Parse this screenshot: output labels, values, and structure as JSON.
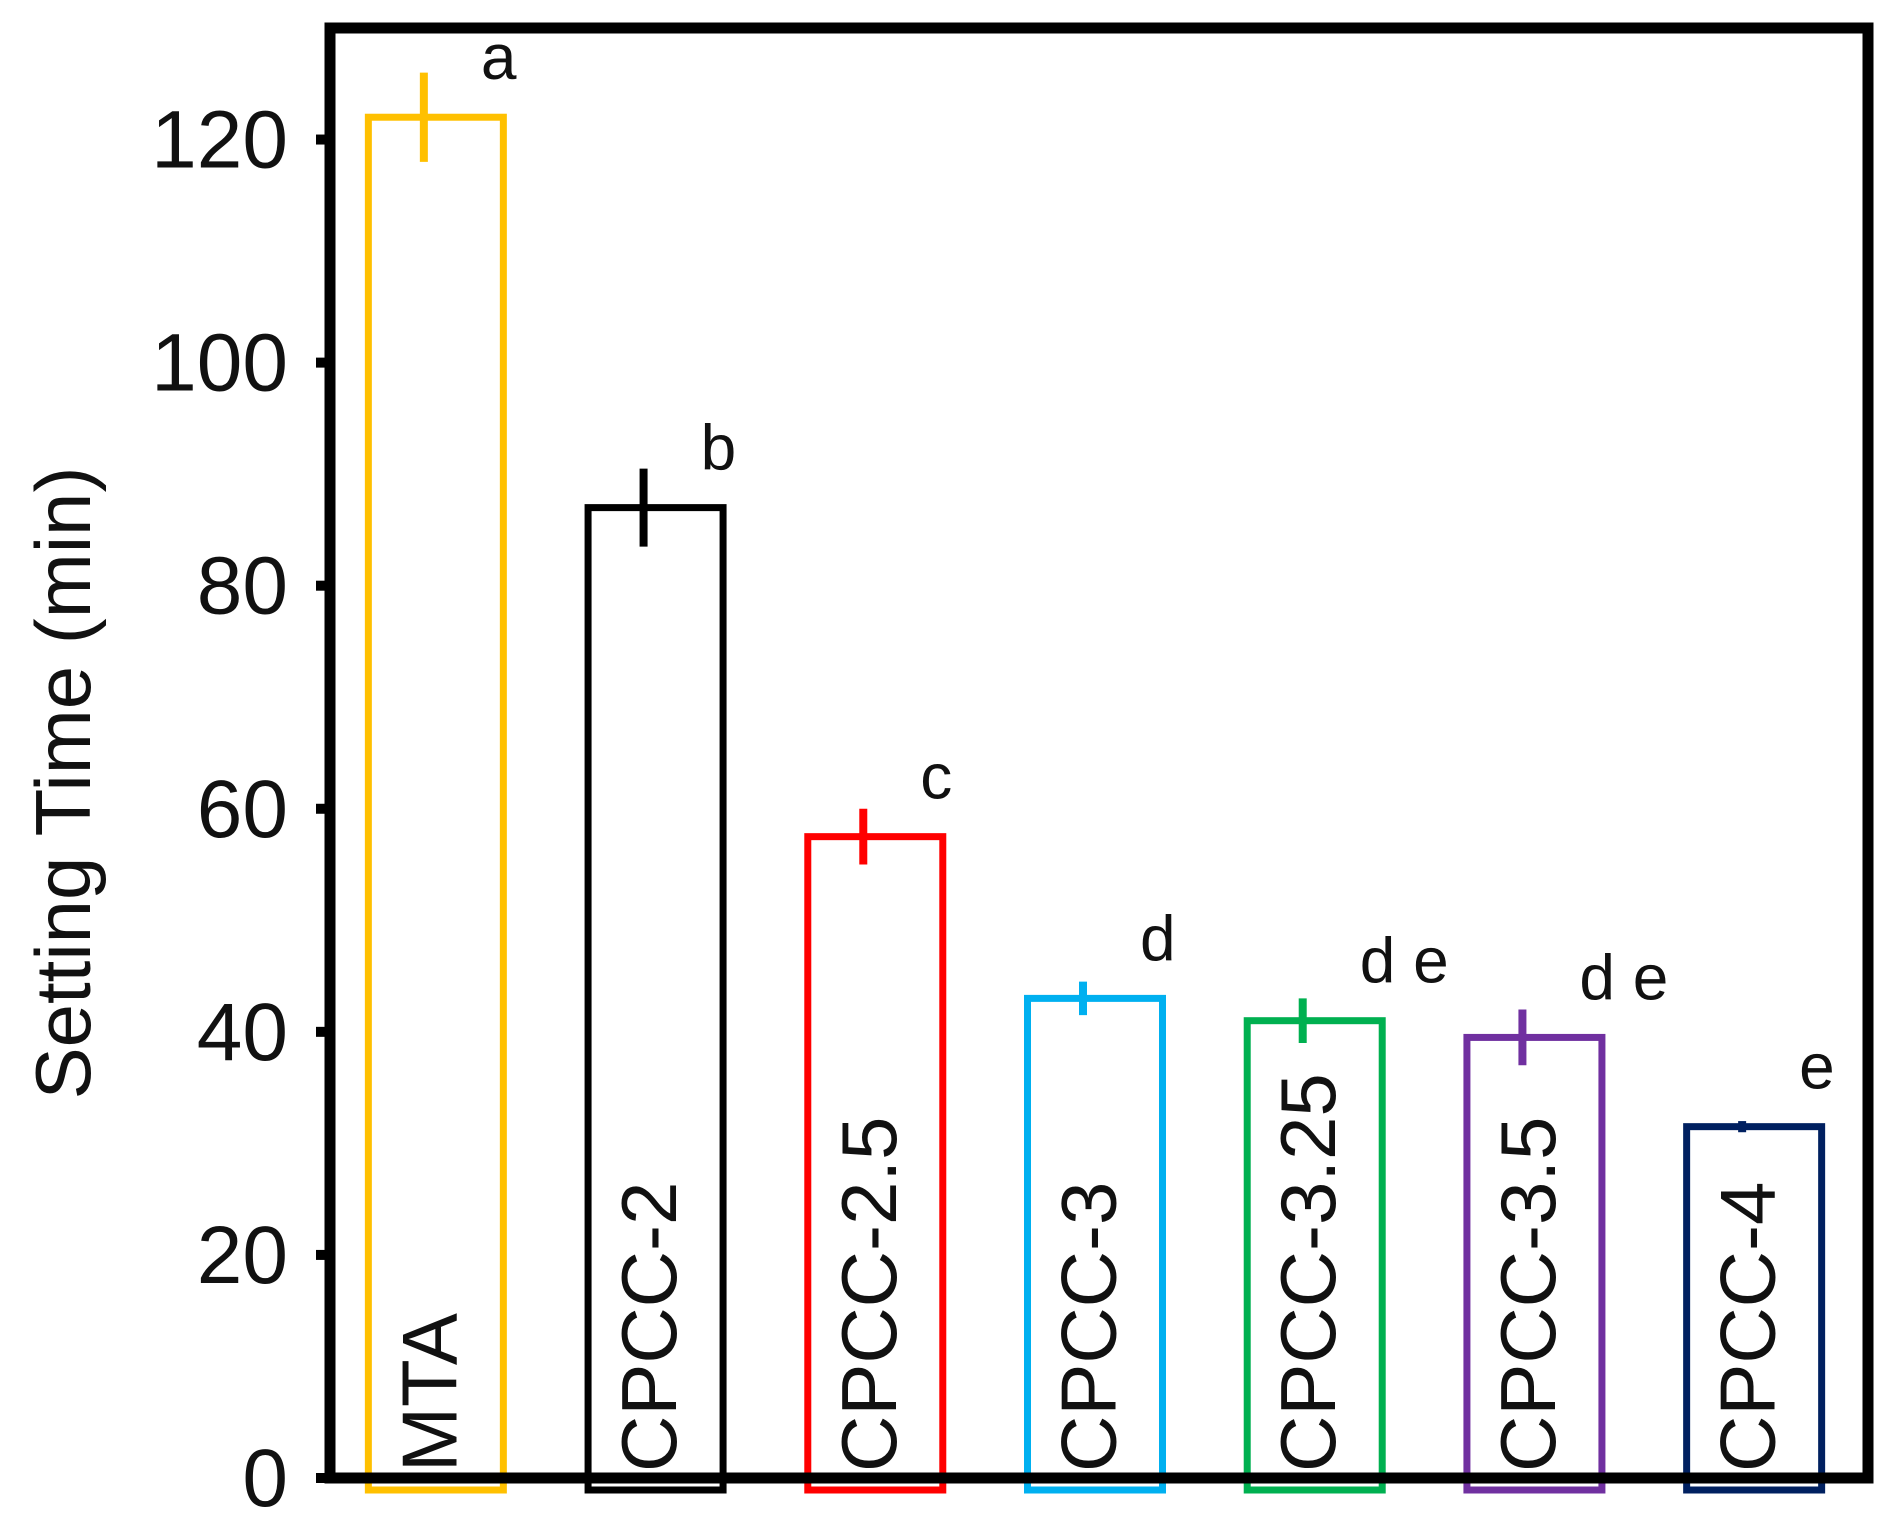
{
  "chart_data": {
    "type": "bar",
    "title": "",
    "xlabel": "",
    "ylabel": "Setting Time  (min)",
    "ylim": [
      0,
      130
    ],
    "yticks": [
      0,
      20,
      40,
      60,
      80,
      100,
      120
    ],
    "grid": false,
    "legend": "none",
    "bar_style": "outline",
    "categories": [
      "MTA",
      "CPCC-2",
      "CPCC-2.5",
      "CPCC-3",
      "CPCC-3.25",
      "CPCC-3.5",
      "CPCC-4"
    ],
    "values": [
      122,
      87,
      57.5,
      43,
      41,
      39.5,
      31.5
    ],
    "errors": [
      4,
      3.5,
      2.5,
      1.5,
      2,
      2.5,
      0.5
    ],
    "significance_labels": [
      "a",
      "b",
      "c",
      "d",
      "d e",
      "d e",
      "e"
    ],
    "colors": [
      "#FFC000",
      "#000000",
      "#FF0000",
      "#00B0F0",
      "#00B050",
      "#7030A0",
      "#002060"
    ]
  }
}
